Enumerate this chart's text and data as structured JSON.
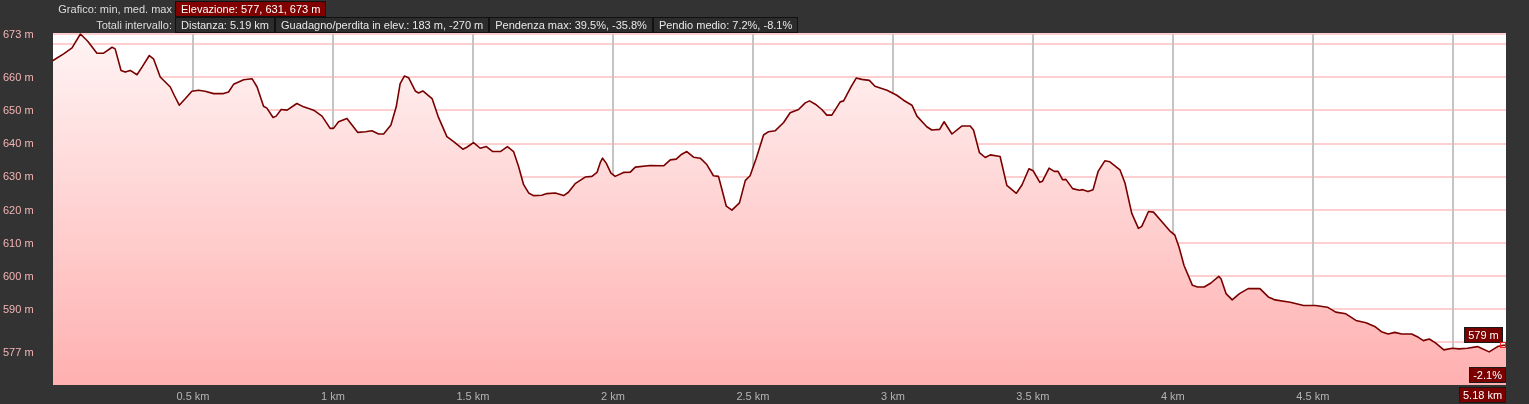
{
  "chart_data": {
    "type": "area",
    "color": "#7a0000",
    "marker": "none",
    "grid": true,
    "annotations": [
      "Grafico: min, med. max",
      "Elevazione: 577, 631, 673 m",
      "Totali intervallo:",
      "Distanza: 5.19 km",
      "Guadagno/perdita in elev.: 183 m, -270 m",
      "Pendenza max: 39.5%, -35.8%",
      "Pendio medio: 7.2%, -8.1%",
      "5.18 km",
      {
        "text": "579 m",
        "x": 5.18,
        "y": 579
      },
      {
        "text": "-2.1%",
        "x": 5.18
      }
    ],
    "x": [
      0,
      0.038,
      0.068,
      0.098,
      0.124,
      0.157,
      0.181,
      0.211,
      0.222,
      0.243,
      0.258,
      0.276,
      0.3,
      0.318,
      0.344,
      0.359,
      0.383,
      0.419,
      0.433,
      0.451,
      0.473,
      0.496,
      0.52,
      0.543,
      0.574,
      0.609,
      0.627,
      0.645,
      0.681,
      0.711,
      0.729,
      0.752,
      0.764,
      0.786,
      0.797,
      0.815,
      0.836,
      0.871,
      0.895,
      0.931,
      0.961,
      0.99,
      1.002,
      1.02,
      1.05,
      1.068,
      1.088,
      1.116,
      1.139,
      1.163,
      1.181,
      1.207,
      1.226,
      1.24,
      1.255,
      1.27,
      1.294,
      1.306,
      1.321,
      1.354,
      1.377,
      1.407,
      1.431,
      1.464,
      1.478,
      1.502,
      1.526,
      1.548,
      1.571,
      1.598,
      1.623,
      1.645,
      1.663,
      1.681,
      1.699,
      1.716,
      1.746,
      1.764,
      1.794,
      1.824,
      1.841,
      1.865,
      1.901,
      1.925,
      1.943,
      1.955,
      1.963,
      1.976,
      1.993,
      2.008,
      2.038,
      2.062,
      2.08,
      2.133,
      2.181,
      2.205,
      2.226,
      2.246,
      2.264,
      2.288,
      2.312,
      2.336,
      2.359,
      2.377,
      2.389,
      2.405,
      2.425,
      2.452,
      2.473,
      2.49,
      2.512,
      2.538,
      2.556,
      2.58,
      2.609,
      2.633,
      2.663,
      2.687,
      2.702,
      2.723,
      2.746,
      2.764,
      2.782,
      2.812,
      2.824,
      2.849,
      2.869,
      2.889,
      2.916,
      2.936,
      2.979,
      3.014,
      3.038,
      3.068,
      3.086,
      3.121,
      3.139,
      3.167,
      3.183,
      3.211,
      3.246,
      3.276,
      3.288,
      3.309,
      3.33,
      3.348,
      3.383,
      3.407,
      3.441,
      3.461,
      3.486,
      3.501,
      3.525,
      3.534,
      3.558,
      3.576,
      3.59,
      3.606,
      3.618,
      3.642,
      3.666,
      3.678,
      3.697,
      3.715,
      3.733,
      3.757,
      3.775,
      3.811,
      3.829,
      3.853,
      3.877,
      3.889,
      3.913,
      3.931,
      3.961,
      3.992,
      4.007,
      4.022,
      4.04,
      4.07,
      4.088,
      4.112,
      4.136,
      4.164,
      4.172,
      4.19,
      4.212,
      4.238,
      4.269,
      4.311,
      4.341,
      4.365,
      4.419,
      4.467,
      4.51,
      4.552,
      4.582,
      4.618,
      4.654,
      4.69,
      4.721,
      4.745,
      4.769,
      4.793,
      4.817,
      4.853,
      4.877,
      4.895,
      4.916,
      4.938,
      4.968,
      4.998,
      5.022,
      5.052,
      5.088,
      5.13,
      5.16,
      5.18,
      5.19
    ],
    "values": [
      665,
      667,
      668.8,
      673,
      670.8,
      667.2,
      667.2,
      669,
      668.5,
      662,
      661.5,
      662,
      660.7,
      663,
      666.5,
      665.5,
      660,
      657,
      654.5,
      651.5,
      653.5,
      655.7,
      656,
      655.7,
      655,
      655,
      655.5,
      657.8,
      659.2,
      659.5,
      657,
      651.2,
      650.6,
      647.8,
      648.2,
      650.2,
      650,
      652,
      651,
      650,
      648.2,
      644.5,
      644.5,
      646.5,
      647.5,
      645.5,
      643.3,
      643.5,
      643.8,
      642.8,
      642.8,
      645.5,
      651,
      658,
      660.3,
      659.8,
      655.8,
      655.2,
      655.8,
      653.5,
      647.8,
      642,
      640.5,
      638.2,
      638.8,
      640.2,
      638.5,
      639,
      637.5,
      637.5,
      639,
      637.5,
      633,
      627.5,
      625,
      624.2,
      624.3,
      624.8,
      625,
      624.2,
      625.2,
      627.8,
      629.8,
      630,
      631.2,
      634.2,
      635.5,
      634,
      631,
      630,
      631.2,
      631.3,
      632.8,
      633.3,
      633.2,
      635,
      635.2,
      636.7,
      637.5,
      635.8,
      635.5,
      633.5,
      630.2,
      630,
      626.2,
      621,
      619.8,
      622,
      628.8,
      630.2,
      635.5,
      642.5,
      643.5,
      643.8,
      646.2,
      649.2,
      650.2,
      652.2,
      652.8,
      651.8,
      650.2,
      648.5,
      648.5,
      652.5,
      652.8,
      656.8,
      659.7,
      659.3,
      659,
      657.2,
      656,
      654.5,
      653,
      651.5,
      648.2,
      645,
      644,
      644.2,
      646.5,
      642.8,
      645.2,
      645.2,
      644,
      637.2,
      635.7,
      636.5,
      636,
      627.3,
      624.9,
      627.4,
      632.3,
      631.7,
      628.2,
      628.5,
      632.5,
      631.5,
      631.5,
      629,
      629.1,
      626.3,
      625.8,
      626,
      625.4,
      626,
      631.5,
      634.7,
      634.4,
      632,
      628,
      618.9,
      614.3,
      614.9,
      619.4,
      619.2,
      616.3,
      613.3,
      612.3,
      608.7,
      603.1,
      597.1,
      596.6,
      596.6,
      597.8,
      599.8,
      599.1,
      594.6,
      592.7,
      594.6,
      596.1,
      596.1,
      593.6,
      592.7,
      592,
      591,
      591,
      590.5,
      589,
      588.5,
      586.5,
      585.8,
      584.7,
      583.1,
      582.4,
      582.9,
      582.4,
      582.4,
      581.4,
      580.4,
      580.9,
      579.7,
      577.6,
      578.1,
      577.9,
      578.1,
      578.6,
      577,
      578.6,
      579,
      579
    ],
    "xlim": [
      0,
      5.19
    ],
    "xticks": [
      {
        "value": 0.5,
        "label": "0.5 km"
      },
      {
        "value": 1,
        "label": "1 km"
      },
      {
        "value": 1.5,
        "label": "1.5 km"
      },
      {
        "value": 2,
        "label": "2 km"
      },
      {
        "value": 2.5,
        "label": "2.5 km"
      },
      {
        "value": 3,
        "label": "3 km"
      },
      {
        "value": 3.5,
        "label": "3.5 km"
      },
      {
        "value": 4,
        "label": "4 km"
      },
      {
        "value": 4.5,
        "label": "4.5 km"
      },
      {
        "value": 5,
        "label": null
      }
    ],
    "ylim": [
      567,
      673
    ],
    "yticks": [
      {
        "value": 577,
        "label": "577 m"
      },
      {
        "value": 580,
        "label": null
      },
      {
        "value": 590,
        "label": "590 m"
      },
      {
        "value": 600,
        "label": "600 m"
      },
      {
        "value": 610,
        "label": "610 m"
      },
      {
        "value": 620,
        "label": "620 m"
      },
      {
        "value": 630,
        "label": "630 m"
      },
      {
        "value": 640,
        "label": "640 m"
      },
      {
        "value": 650,
        "label": "650 m"
      },
      {
        "value": 660,
        "label": "660 m"
      },
      {
        "value": 670,
        "label": null
      },
      {
        "value": 673,
        "label": "673 m"
      }
    ]
  }
}
